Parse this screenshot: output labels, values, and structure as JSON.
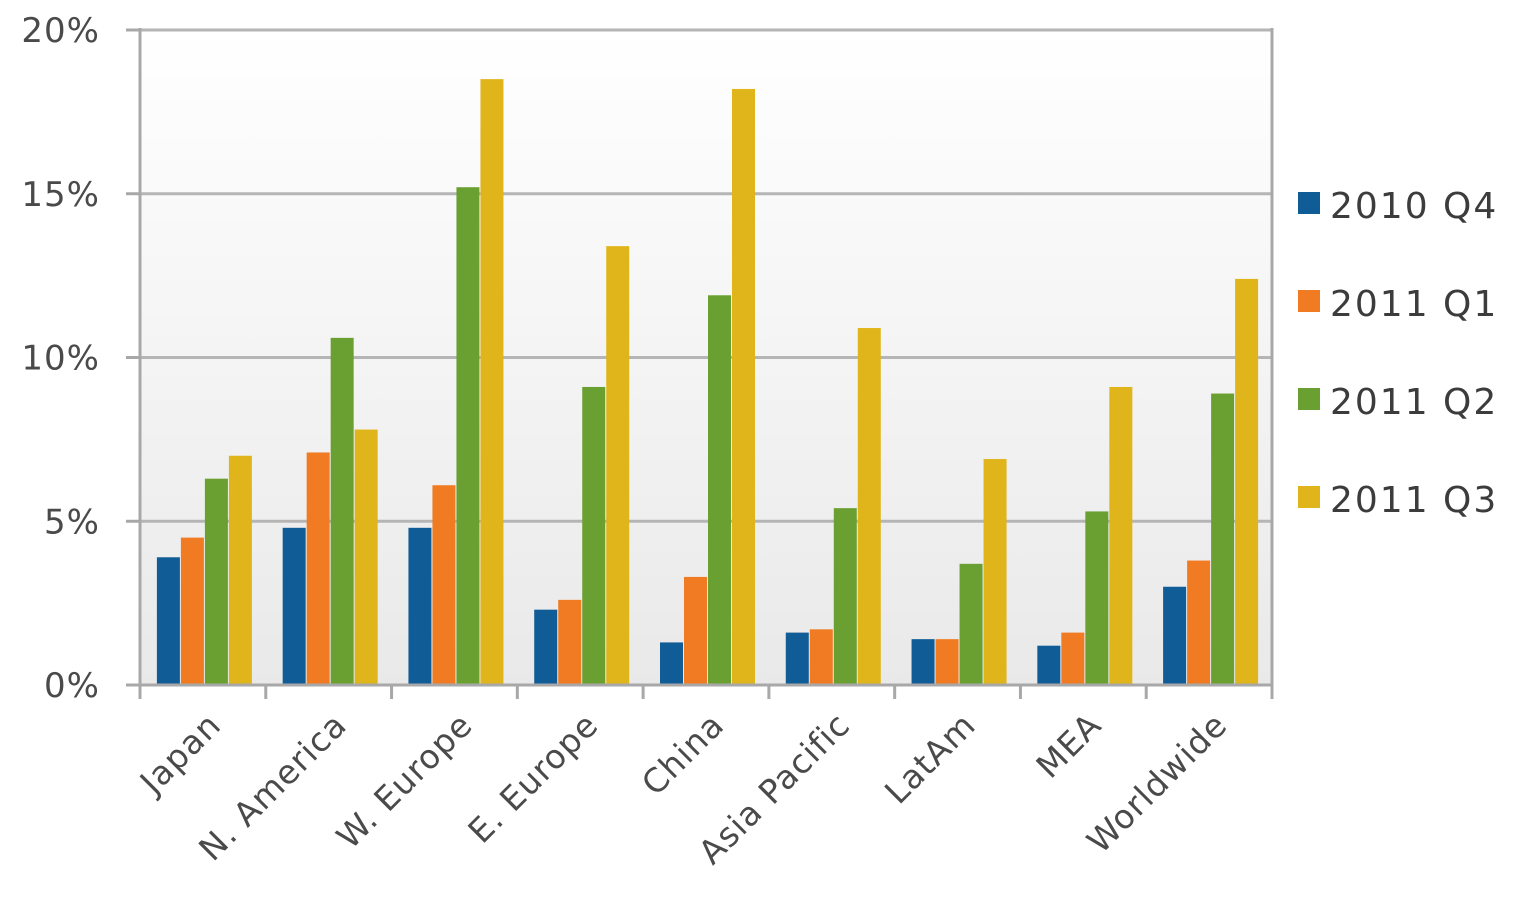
{
  "chart_data": {
    "type": "bar",
    "title": "",
    "xlabel": "",
    "ylabel": "",
    "ylim": [
      0,
      20
    ],
    "y_ticks": [
      "0%",
      "5%",
      "10%",
      "15%",
      "20%"
    ],
    "y_tick_values": [
      0,
      5,
      10,
      15,
      20
    ],
    "grid": true,
    "legend_position": "right",
    "categories": [
      "Japan",
      "N. America",
      "W. Europe",
      "E. Europe",
      "China",
      "Asia Pacific",
      "LatAm",
      "MEA",
      "Worldwide"
    ],
    "series": [
      {
        "name": "2010 Q4",
        "color": "#0f5c97",
        "values": [
          3.9,
          4.8,
          4.8,
          2.3,
          1.3,
          1.6,
          1.4,
          1.2,
          3.0
        ]
      },
      {
        "name": "2011 Q1",
        "color": "#f07b22",
        "values": [
          4.5,
          7.1,
          6.1,
          2.6,
          3.3,
          1.7,
          1.4,
          1.6,
          3.8
        ]
      },
      {
        "name": "2011 Q2",
        "color": "#6aa032",
        "values": [
          6.3,
          10.6,
          15.2,
          9.1,
          11.9,
          5.4,
          3.7,
          5.3,
          8.9
        ]
      },
      {
        "name": "2011 Q3",
        "color": "#e0b51c",
        "values": [
          7.0,
          7.8,
          18.5,
          13.4,
          18.2,
          10.9,
          6.9,
          9.1,
          12.4
        ]
      }
    ]
  }
}
